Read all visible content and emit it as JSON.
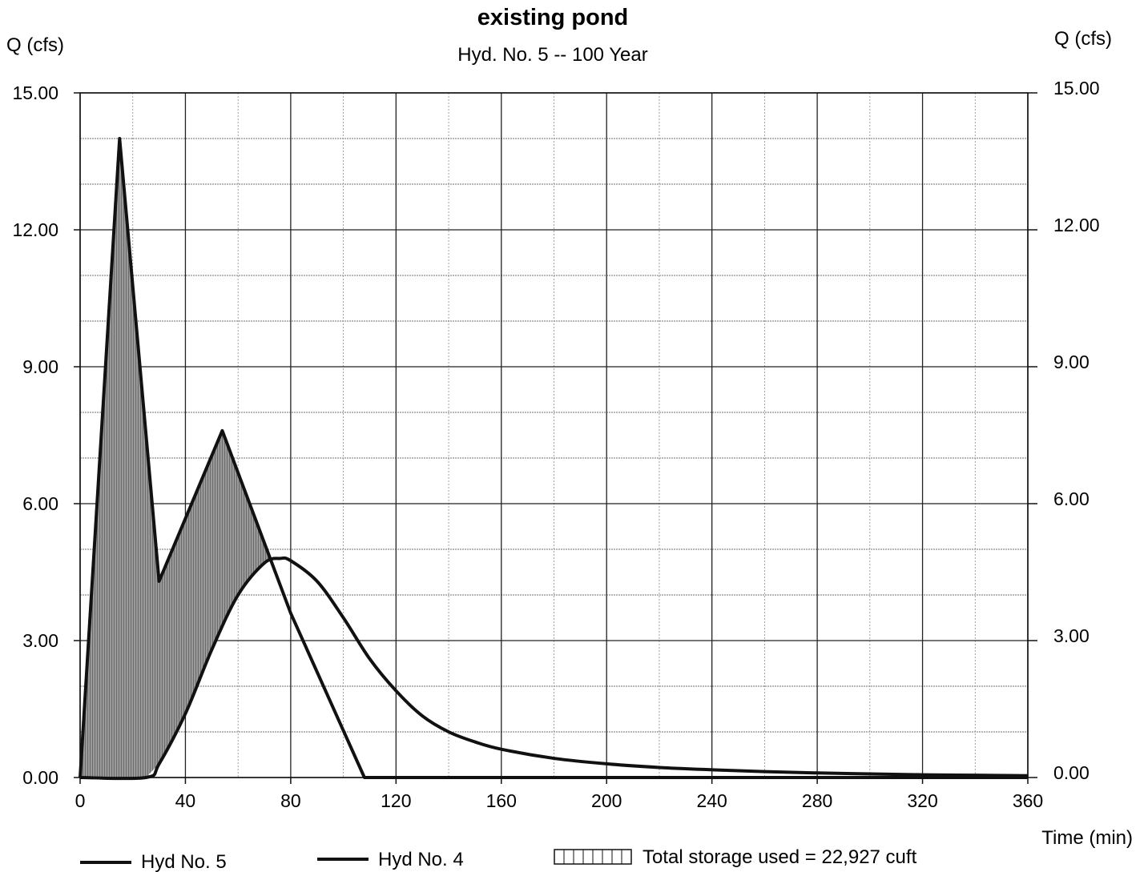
{
  "chart_data": {
    "type": "area",
    "title": "existing pond",
    "subtitle": "Hyd. No. 5 -- 100 Year",
    "ylabel_left": "Q (cfs)",
    "ylabel_right": "Q (cfs)",
    "xlabel": "Time (min)",
    "xlim": [
      0,
      360
    ],
    "ylim": [
      0,
      15
    ],
    "x_ticks": [
      "0",
      "40",
      "80",
      "120",
      "160",
      "200",
      "240",
      "280",
      "320",
      "360"
    ],
    "y_ticks_left": [
      "0.00",
      "3.00",
      "6.00",
      "9.00",
      "12.00",
      "15.00"
    ],
    "y_ticks_right": [
      "0.00",
      "3.00",
      "6.00",
      "9.00",
      "12.00",
      "15.00"
    ],
    "grid": true,
    "legend_position": "bottom",
    "series": [
      {
        "name": "Hyd No. 5",
        "x": [
          0,
          15,
          30,
          54,
          80,
          108,
          120,
          200,
          360
        ],
        "y": [
          0,
          14.0,
          4.3,
          7.6,
          3.6,
          0,
          0,
          0,
          0
        ]
      },
      {
        "name": "Hyd No. 4",
        "x": [
          0,
          25,
          30,
          40,
          50,
          60,
          70,
          76,
          80,
          90,
          100,
          110,
          120,
          130,
          140,
          150,
          160,
          180,
          200,
          220,
          240,
          260,
          280,
          300,
          320,
          340,
          360
        ],
        "y": [
          0,
          0,
          0.3,
          1.4,
          2.8,
          4.0,
          4.7,
          4.8,
          4.75,
          4.3,
          3.5,
          2.6,
          1.9,
          1.35,
          1.0,
          0.78,
          0.62,
          0.42,
          0.3,
          0.22,
          0.17,
          0.13,
          0.1,
          0.08,
          0.06,
          0.05,
          0.04
        ]
      }
    ],
    "storage_label": "Total storage used = 22,927 cuft",
    "colors": {
      "line": "#111111",
      "fill": "#9a9a9a",
      "grid": "#222222",
      "minor_grid": "#8c8c8c"
    }
  }
}
